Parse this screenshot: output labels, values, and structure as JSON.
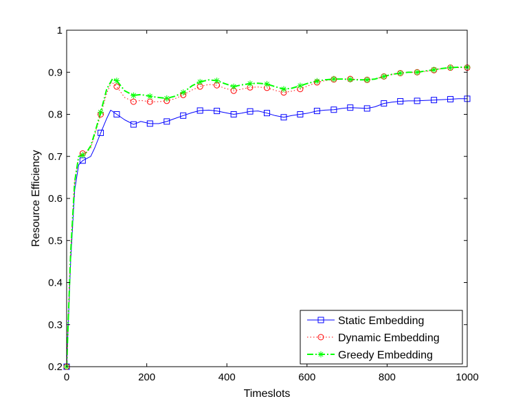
{
  "chart_data": {
    "type": "line",
    "title": "",
    "xlabel": "Timeslots",
    "ylabel": "Resource Efficiency",
    "xlim": [
      0,
      1000
    ],
    "ylim": [
      0.2,
      1
    ],
    "xticks": [
      0,
      200,
      400,
      600,
      800,
      1000
    ],
    "xtick_labels": [
      "0",
      "200",
      "400",
      "600",
      "800",
      "1000"
    ],
    "yticks": [
      0.2,
      0.3,
      0.4,
      0.5,
      0.6,
      0.7,
      0.8,
      0.9,
      1
    ],
    "ytick_labels": [
      "0.2",
      "0.3",
      "0.4",
      "0.5",
      "0.6",
      "0.7",
      "0.8",
      "0.9",
      "1"
    ],
    "grid": false,
    "legend_position": "bottom-right",
    "series": [
      {
        "name": "Static Embedding",
        "color": "#0000ff",
        "line_style": "solid",
        "marker": "square",
        "x": [
          0,
          10,
          20,
          30,
          40,
          50,
          60,
          70,
          85,
          100,
          110,
          125,
          145,
          167,
          185,
          208,
          230,
          250,
          270,
          291,
          313,
          333,
          355,
          375,
          395,
          417,
          437,
          458,
          478,
          500,
          520,
          542,
          562,
          583,
          603,
          625,
          645,
          667,
          687,
          708,
          728,
          750,
          770,
          792,
          812,
          833,
          853,
          875,
          895,
          917,
          937,
          958,
          978,
          1000
        ],
        "y": [
          0.2,
          0.45,
          0.62,
          0.68,
          0.69,
          0.695,
          0.7,
          0.72,
          0.756,
          0.79,
          0.81,
          0.8,
          0.787,
          0.776,
          0.783,
          0.778,
          0.778,
          0.783,
          0.79,
          0.797,
          0.804,
          0.809,
          0.81,
          0.808,
          0.804,
          0.8,
          0.803,
          0.807,
          0.808,
          0.803,
          0.797,
          0.793,
          0.797,
          0.8,
          0.803,
          0.808,
          0.81,
          0.811,
          0.814,
          0.816,
          0.815,
          0.814,
          0.818,
          0.826,
          0.829,
          0.831,
          0.832,
          0.832,
          0.833,
          0.834,
          0.835,
          0.836,
          0.837,
          0.837
        ],
        "marker_x": [
          0,
          40,
          85,
          125,
          167,
          208,
          250,
          291,
          333,
          375,
          417,
          458,
          500,
          542,
          583,
          625,
          667,
          708,
          750,
          792,
          833,
          875,
          917,
          958,
          1000
        ],
        "marker_y": [
          0.2,
          0.69,
          0.756,
          0.8,
          0.776,
          0.778,
          0.783,
          0.797,
          0.809,
          0.808,
          0.8,
          0.807,
          0.803,
          0.793,
          0.8,
          0.808,
          0.811,
          0.816,
          0.814,
          0.826,
          0.831,
          0.832,
          0.834,
          0.836,
          0.837
        ]
      },
      {
        "name": "Dynamic Embedding",
        "color": "#ff0000",
        "line_style": "dotted",
        "marker": "circle",
        "x": [
          0,
          10,
          20,
          30,
          40,
          50,
          60,
          70,
          85,
          100,
          112,
          125,
          145,
          167,
          185,
          208,
          230,
          250,
          270,
          291,
          313,
          333,
          355,
          375,
          395,
          417,
          437,
          458,
          478,
          500,
          520,
          542,
          562,
          583,
          603,
          625,
          645,
          667,
          687,
          708,
          728,
          750,
          770,
          792,
          812,
          833,
          853,
          875,
          895,
          917,
          937,
          958,
          978,
          1000
        ],
        "y": [
          0.2,
          0.47,
          0.64,
          0.7,
          0.707,
          0.71,
          0.72,
          0.75,
          0.8,
          0.85,
          0.877,
          0.866,
          0.84,
          0.83,
          0.833,
          0.83,
          0.83,
          0.832,
          0.837,
          0.846,
          0.858,
          0.866,
          0.871,
          0.869,
          0.862,
          0.856,
          0.86,
          0.864,
          0.865,
          0.863,
          0.857,
          0.852,
          0.855,
          0.86,
          0.868,
          0.876,
          0.88,
          0.883,
          0.884,
          0.884,
          0.883,
          0.882,
          0.884,
          0.89,
          0.895,
          0.898,
          0.9,
          0.9,
          0.902,
          0.905,
          0.909,
          0.911,
          0.911,
          0.911
        ],
        "marker_x": [
          0,
          40,
          85,
          125,
          167,
          208,
          250,
          291,
          333,
          375,
          417,
          458,
          500,
          542,
          583,
          625,
          667,
          708,
          750,
          792,
          833,
          875,
          917,
          958,
          1000
        ],
        "marker_y": [
          0.2,
          0.707,
          0.8,
          0.866,
          0.83,
          0.83,
          0.832,
          0.846,
          0.866,
          0.869,
          0.856,
          0.864,
          0.863,
          0.852,
          0.86,
          0.876,
          0.883,
          0.884,
          0.882,
          0.89,
          0.898,
          0.9,
          0.905,
          0.911,
          0.911
        ]
      },
      {
        "name": "Greedy Embedding",
        "color": "#00ff00",
        "line_style": "dashdot",
        "marker": "star",
        "x": [
          0,
          10,
          20,
          30,
          40,
          50,
          60,
          70,
          85,
          100,
          115,
          125,
          145,
          167,
          185,
          208,
          230,
          250,
          270,
          291,
          313,
          333,
          355,
          375,
          395,
          417,
          437,
          458,
          478,
          500,
          520,
          542,
          562,
          583,
          603,
          625,
          645,
          667,
          687,
          708,
          728,
          750,
          770,
          792,
          812,
          833,
          853,
          875,
          895,
          917,
          937,
          958,
          978,
          1000
        ],
        "y": [
          0.2,
          0.47,
          0.64,
          0.7,
          0.703,
          0.71,
          0.725,
          0.755,
          0.805,
          0.86,
          0.885,
          0.88,
          0.856,
          0.845,
          0.847,
          0.843,
          0.84,
          0.838,
          0.843,
          0.852,
          0.868,
          0.877,
          0.882,
          0.88,
          0.873,
          0.866,
          0.87,
          0.873,
          0.874,
          0.872,
          0.866,
          0.86,
          0.862,
          0.868,
          0.874,
          0.879,
          0.882,
          0.884,
          0.884,
          0.883,
          0.882,
          0.882,
          0.884,
          0.89,
          0.895,
          0.898,
          0.9,
          0.9,
          0.903,
          0.906,
          0.909,
          0.911,
          0.912,
          0.912
        ],
        "marker_x": [
          0,
          40,
          85,
          125,
          167,
          208,
          250,
          291,
          333,
          375,
          417,
          458,
          500,
          542,
          583,
          625,
          667,
          708,
          750,
          792,
          833,
          875,
          917,
          958,
          1000
        ],
        "marker_y": [
          0.2,
          0.703,
          0.805,
          0.88,
          0.845,
          0.843,
          0.838,
          0.852,
          0.877,
          0.88,
          0.866,
          0.873,
          0.872,
          0.86,
          0.868,
          0.879,
          0.884,
          0.883,
          0.882,
          0.89,
          0.898,
          0.9,
          0.906,
          0.911,
          0.912
        ]
      }
    ]
  }
}
